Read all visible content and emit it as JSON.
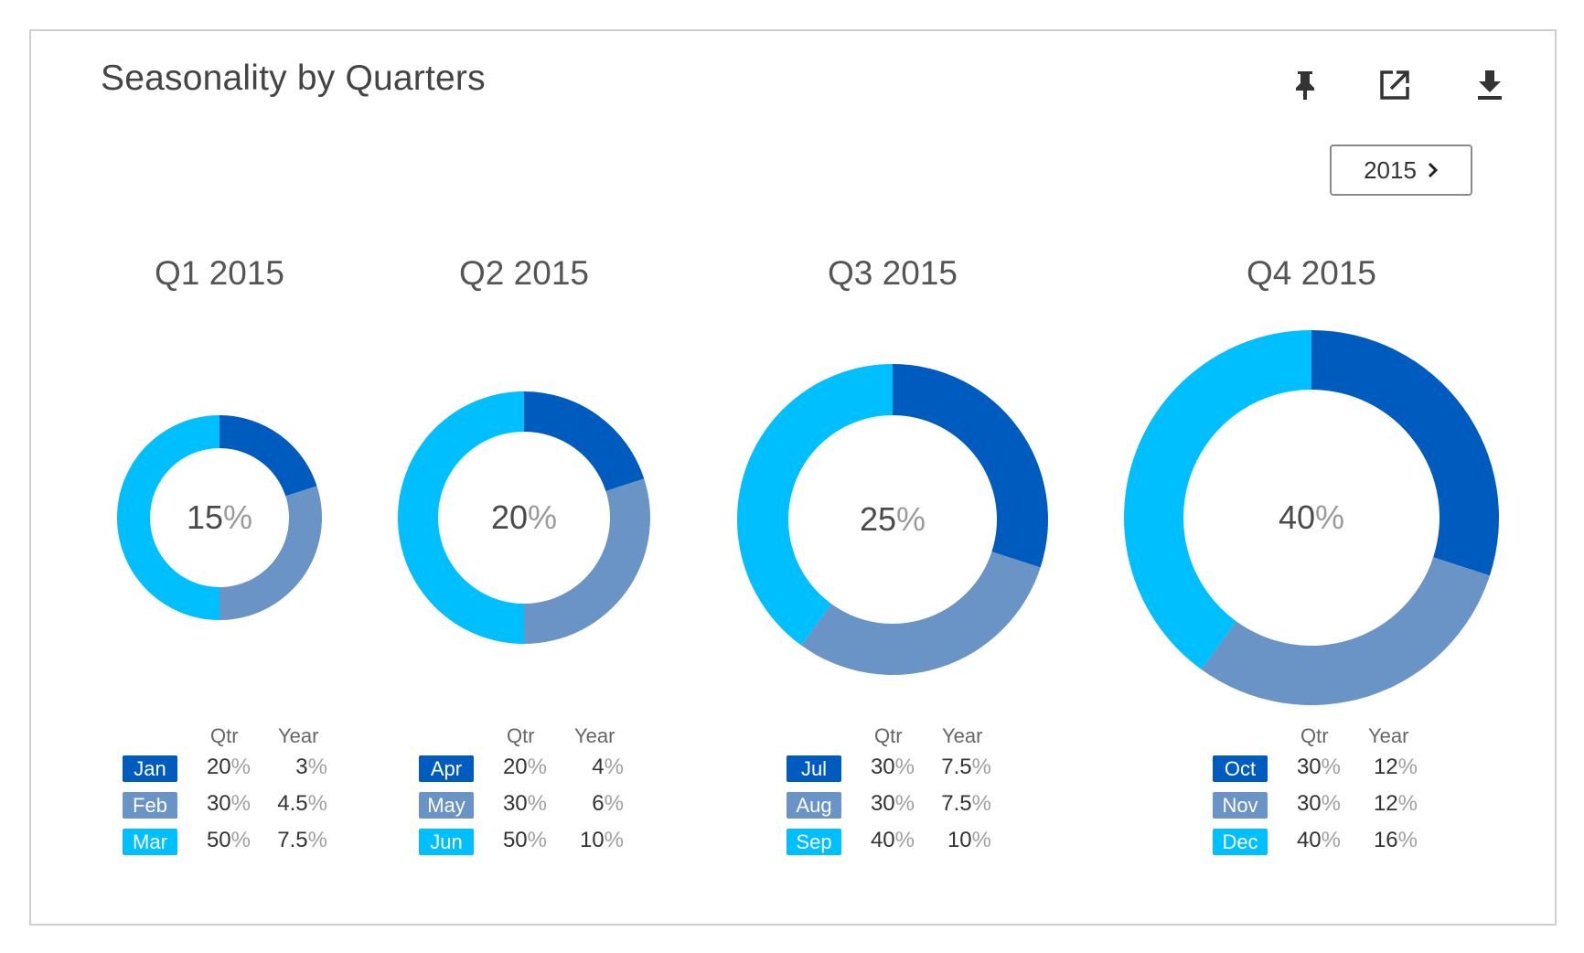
{
  "title": "Seasonality by Quarters",
  "toolbar": {
    "pin_icon": "pin-icon",
    "open_icon": "open-external-icon",
    "download_icon": "download-icon"
  },
  "year_selector": {
    "label": "2015",
    "icon": "chevron-right-icon"
  },
  "columns": {
    "qtr": "Qtr",
    "year": "Year"
  },
  "colors": {
    "m1": "#005bbf",
    "m2": "#6a93c6",
    "m3": "#00bfff"
  },
  "chart_data": [
    {
      "type": "pie",
      "title": "Q1 2015",
      "center_value": "15",
      "center_unit": "%",
      "year_share": 15,
      "months": [
        {
          "label": "Jan",
          "qtr": "20",
          "year": "3"
        },
        {
          "label": "Feb",
          "qtr": "30",
          "year": "4.5"
        },
        {
          "label": "Mar",
          "qtr": "50",
          "year": "7.5"
        }
      ],
      "values": [
        20,
        30,
        50
      ]
    },
    {
      "type": "pie",
      "title": "Q2 2015",
      "center_value": "20",
      "center_unit": "%",
      "year_share": 20,
      "months": [
        {
          "label": "Apr",
          "qtr": "20",
          "year": "4"
        },
        {
          "label": "May",
          "qtr": "30",
          "year": "6"
        },
        {
          "label": "Jun",
          "qtr": "50",
          "year": "10"
        }
      ],
      "values": [
        20,
        30,
        50
      ]
    },
    {
      "type": "pie",
      "title": "Q3 2015",
      "center_value": "25",
      "center_unit": "%",
      "year_share": 25,
      "months": [
        {
          "label": "Jul",
          "qtr": "30",
          "year": "7.5"
        },
        {
          "label": "Aug",
          "qtr": "30",
          "year": "7.5"
        },
        {
          "label": "Sep",
          "qtr": "40",
          "year": "10"
        }
      ],
      "values": [
        30,
        30,
        40
      ]
    },
    {
      "type": "pie",
      "title": "Q4 2015",
      "center_value": "40",
      "center_unit": "%",
      "year_share": 40,
      "months": [
        {
          "label": "Oct",
          "qtr": "30",
          "year": "12"
        },
        {
          "label": "Nov",
          "qtr": "30",
          "year": "12"
        },
        {
          "label": "Dec",
          "qtr": "40",
          "year": "16"
        }
      ],
      "values": [
        30,
        30,
        40
      ]
    }
  ]
}
